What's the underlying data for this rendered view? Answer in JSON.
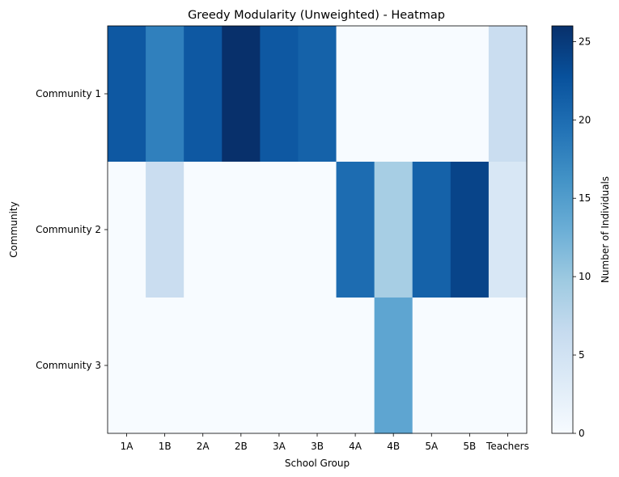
{
  "chart_data": {
    "type": "heatmap",
    "title": "Greedy Modularity (Unweighted) - Heatmap",
    "xlabel": "School Group",
    "ylabel": "Community",
    "x_categories": [
      "1A",
      "1B",
      "2A",
      "2B",
      "3A",
      "3B",
      "4A",
      "4B",
      "5A",
      "5B",
      "Teachers"
    ],
    "y_categories": [
      "Community 1",
      "Community 2",
      "Community 3"
    ],
    "values": [
      [
        22,
        18,
        22,
        26,
        22,
        21,
        0,
        0,
        0,
        0,
        6
      ],
      [
        0,
        6,
        0,
        0,
        0,
        0,
        20,
        9,
        21,
        24,
        4
      ],
      [
        0,
        0,
        0,
        0,
        0,
        0,
        0,
        14,
        0,
        0,
        0
      ]
    ],
    "colorbar": {
      "label": "Number of Individuals",
      "min": 0,
      "max": 26,
      "ticks": [
        0,
        5,
        10,
        15,
        20,
        25
      ]
    },
    "colormap": "Blues"
  }
}
